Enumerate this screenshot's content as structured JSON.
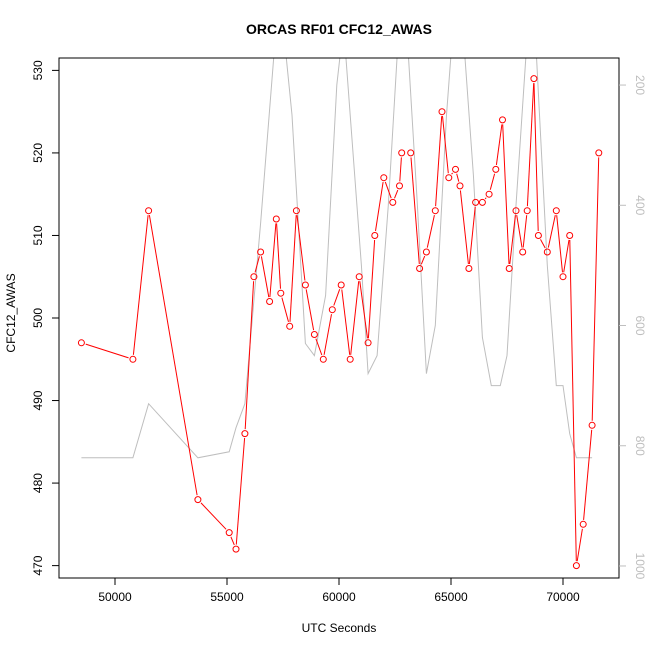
{
  "chart_data": {
    "type": "line",
    "title": "ORCAS RF01 CFC12_AWAS",
    "xlabel": "UTC Seconds",
    "ylabel": "CFC12_AWAS",
    "xlim": [
      47500,
      72500
    ],
    "ylim": [
      468.5,
      531.5
    ],
    "xticks": [
      50000,
      55000,
      60000,
      65000,
      70000
    ],
    "yticks": [
      470,
      480,
      490,
      500,
      510,
      520,
      530
    ],
    "series": [
      {
        "color": "#ff0000",
        "marker": "open-circle",
        "x": [
          48500,
          50800,
          51500,
          53700,
          55100,
          55400,
          55800,
          56200,
          56500,
          56900,
          57200,
          57400,
          57800,
          58100,
          58500,
          58900,
          59300,
          59700,
          60100,
          60500,
          60900,
          61300,
          61600,
          62000,
          62400,
          62700,
          62800,
          63200,
          63600,
          63900,
          64300,
          64600,
          64900,
          65200,
          65400,
          65800,
          66100,
          66400,
          66700,
          67000,
          67300,
          67600,
          67900,
          68200,
          68400,
          68700,
          68900,
          69300,
          69700,
          70000,
          70300,
          70600,
          70900,
          71300,
          71600
        ],
        "values": [
          497,
          495,
          513,
          478,
          474,
          472,
          486,
          505,
          508,
          502,
          512,
          503,
          499,
          513,
          504,
          498,
          495,
          501,
          504,
          495,
          505,
          497,
          510,
          517,
          514,
          516,
          520,
          520,
          506,
          508,
          513,
          525,
          517,
          518,
          516,
          506,
          514,
          514,
          515,
          518,
          524,
          506,
          513,
          508,
          513,
          529,
          510,
          508,
          513,
          505,
          510,
          470,
          475,
          487,
          520
        ]
      },
      {
        "color": "#bebebe",
        "marker": "none",
        "axis": "right",
        "x": [
          48500,
          50800,
          51500,
          53700,
          55100,
          55400,
          55800,
          56500,
          57200,
          57500,
          57900,
          58500,
          58900,
          59400,
          59900,
          60200,
          60500,
          61000,
          61300,
          61700,
          62200,
          62600,
          63000,
          63500,
          63900,
          64300,
          64800,
          65100,
          65500,
          66000,
          66400,
          66800,
          67200,
          67500,
          67900,
          68400,
          68800,
          69300,
          69700,
          70000,
          70300,
          70600,
          71000,
          71300
        ],
        "values": [
          820,
          820,
          730,
          820,
          810,
          770,
          730,
          430,
          100,
          100,
          250,
          630,
          650,
          550,
          200,
          100,
          250,
          500,
          680,
          650,
          400,
          150,
          90,
          400,
          680,
          600,
          250,
          100,
          90,
          350,
          620,
          700,
          700,
          650,
          400,
          120,
          140,
          500,
          700,
          700,
          780,
          820,
          820,
          820
        ]
      }
    ],
    "right_axis": {
      "ylim": [
        1020,
        155
      ],
      "yticks": [
        200,
        400,
        600,
        800,
        1000
      ],
      "color": "#bebebe"
    },
    "grid": false,
    "legend": "none"
  }
}
